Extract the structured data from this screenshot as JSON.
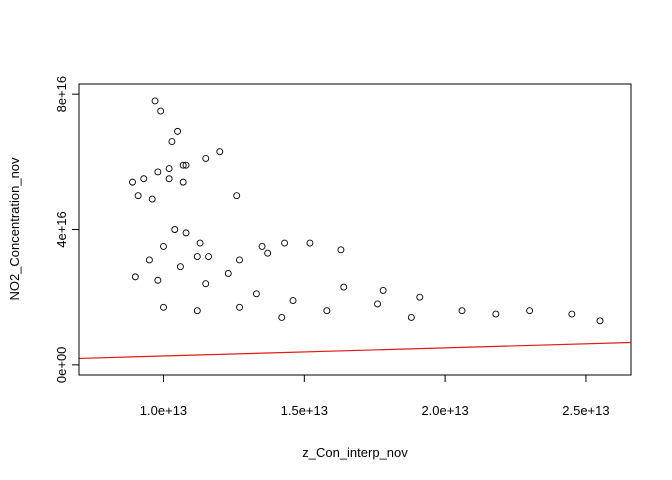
{
  "chart_data": {
    "type": "scatter",
    "title": "",
    "xlabel": "z_Con_interp_nov",
    "ylabel": "NO2_Concentration_nov",
    "xlim": [
      7000000000000.0,
      26600000000000.0
    ],
    "ylim": [
      -3000000000000000.0,
      8.3e+16
    ],
    "x_ticks": [
      {
        "value": 10000000000000.0,
        "label": "1.0e+13"
      },
      {
        "value": 15000000000000.0,
        "label": "1.5e+13"
      },
      {
        "value": 20000000000000.0,
        "label": "2.0e+13"
      },
      {
        "value": 25000000000000.0,
        "label": "2.5e+13"
      }
    ],
    "y_ticks": [
      {
        "value": 0,
        "label": "0e+00"
      },
      {
        "value": 4e+16,
        "label": "4e+16"
      },
      {
        "value": 8e+16,
        "label": "8e+16"
      }
    ],
    "grid": false,
    "marker": "open-circle",
    "point_color": "#000000",
    "fit_line": {
      "color": "#e31a1c",
      "x": [
        7000000000000.0,
        26600000000000.0
      ],
      "y": [
        1900000000000000.0,
        6600000000000000.0
      ]
    },
    "points": [
      [
        9700000000000.0,
        7.8e+16
      ],
      [
        9900000000000.0,
        7.5e+16
      ],
      [
        10300000000000.0,
        6.6e+16
      ],
      [
        10500000000000.0,
        6.9e+16
      ],
      [
        10700000000000.0,
        5.9e+16
      ],
      [
        10800000000000.0,
        5.9e+16
      ],
      [
        10700000000000.0,
        5.4e+16
      ],
      [
        10200000000000.0,
        5.8e+16
      ],
      [
        10200000000000.0,
        5.5e+16
      ],
      [
        9800000000000.0,
        5.7e+16
      ],
      [
        11500000000000.0,
        6.1e+16
      ],
      [
        12000000000000.0,
        6.3e+16
      ],
      [
        9300000000000.0,
        5.5e+16
      ],
      [
        9100000000000.0,
        5e+16
      ],
      [
        9600000000000.0,
        4.9e+16
      ],
      [
        8900000000000.0,
        5.4e+16
      ],
      [
        12600000000000.0,
        5e+16
      ],
      [
        10400000000000.0,
        4e+16
      ],
      [
        10800000000000.0,
        3.9e+16
      ],
      [
        11300000000000.0,
        3.6e+16
      ],
      [
        10000000000000.0,
        3.5e+16
      ],
      [
        9500000000000.0,
        3.1e+16
      ],
      [
        11200000000000.0,
        3.2e+16
      ],
      [
        11600000000000.0,
        3.2e+16
      ],
      [
        13500000000000.0,
        3.5e+16
      ],
      [
        13700000000000.0,
        3.3e+16
      ],
      [
        14300000000000.0,
        3.6e+16
      ],
      [
        15200000000000.0,
        3.6e+16
      ],
      [
        12700000000000.0,
        3.1e+16
      ],
      [
        16300000000000.0,
        3.4e+16
      ],
      [
        9000000000000.0,
        2.6e+16
      ],
      [
        9800000000000.0,
        2.5e+16
      ],
      [
        10600000000000.0,
        2.9e+16
      ],
      [
        12300000000000.0,
        2.7e+16
      ],
      [
        11500000000000.0,
        2.4e+16
      ],
      [
        13300000000000.0,
        2.1e+16
      ],
      [
        16400000000000.0,
        2.3e+16
      ],
      [
        17800000000000.0,
        2.2e+16
      ],
      [
        19100000000000.0,
        2e+16
      ],
      [
        14600000000000.0,
        1.9e+16
      ],
      [
        17600000000000.0,
        1.8e+16
      ],
      [
        15800000000000.0,
        1.6e+16
      ],
      [
        10000000000000.0,
        1.7e+16
      ],
      [
        11200000000000.0,
        1.6e+16
      ],
      [
        12700000000000.0,
        1.7e+16
      ],
      [
        20600000000000.0,
        1.6e+16
      ],
      [
        21800000000000.0,
        1.5e+16
      ],
      [
        24500000000000.0,
        1.5e+16
      ],
      [
        23000000000000.0,
        1.6e+16
      ],
      [
        18800000000000.0,
        1.4e+16
      ],
      [
        14200000000000.0,
        1.4e+16
      ],
      [
        25500000000000.0,
        1.3e+16
      ]
    ]
  }
}
